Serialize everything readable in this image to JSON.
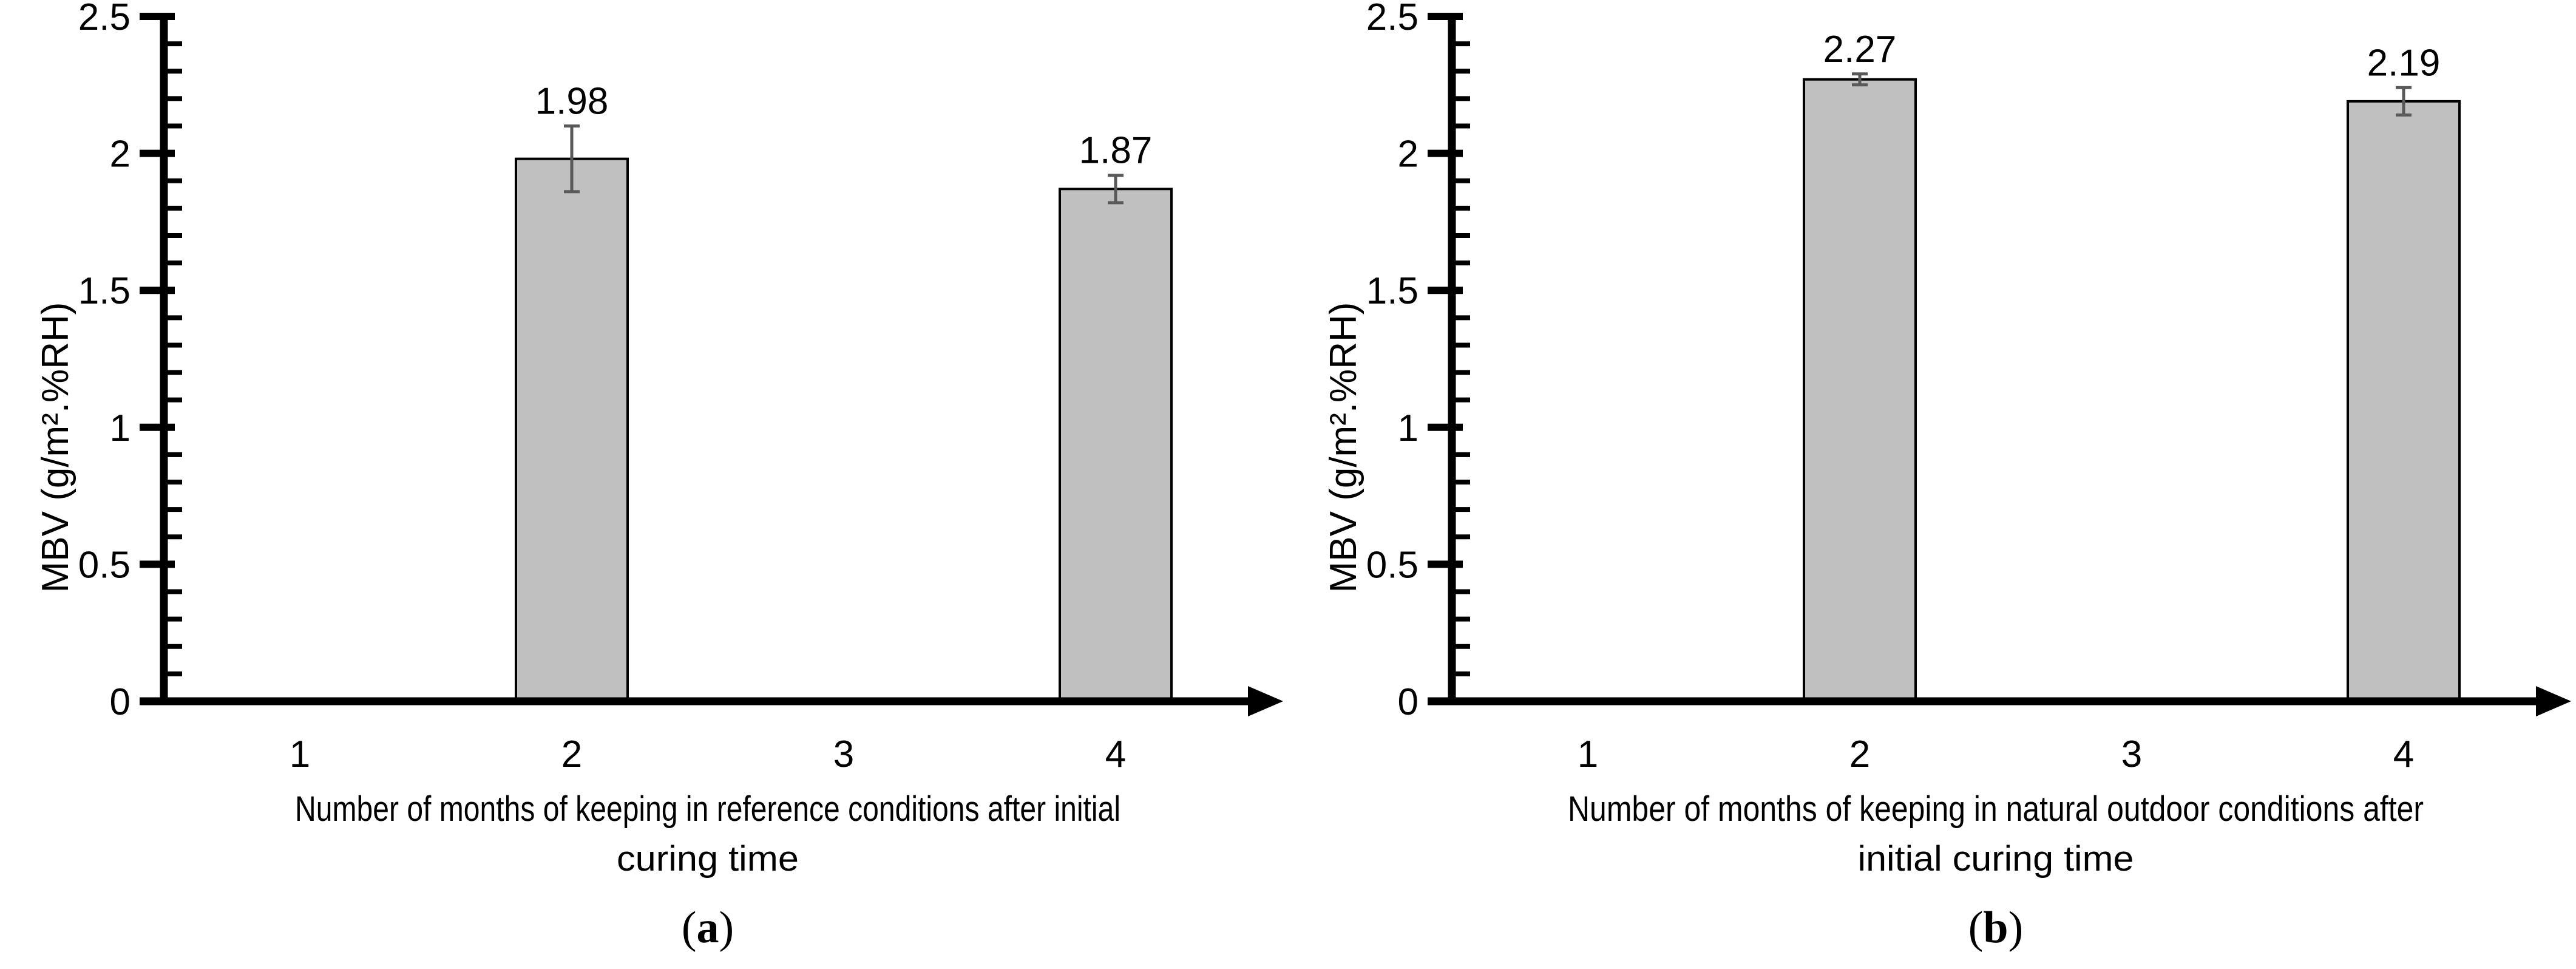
{
  "figure": {
    "background": "#ffffff",
    "colors": {
      "bar_fill": "#c0c0c0",
      "bar_border": "#000000",
      "error_bar": "#595959",
      "axis": "#000000",
      "text": "#000000"
    }
  },
  "chart_data": [
    {
      "type": "bar",
      "panel_open": "(",
      "panel_letter": "a",
      "panel_close": ")",
      "categories": [
        "1",
        "2",
        "3",
        "4"
      ],
      "values": [
        null,
        1.98,
        null,
        1.87
      ],
      "errors": [
        null,
        0.12,
        null,
        0.05
      ],
      "data_labels": [
        null,
        "1.98",
        null,
        "1.87"
      ],
      "xlabel": "Number of months of keeping in reference conditions after initial curing time",
      "xlabel_lines": [
        "Number of months of keeping in reference conditions after initial",
        "curing time"
      ],
      "ylabel": "MBV (g/m².%RH)",
      "ylim": [
        0,
        2.5
      ],
      "ymajor_ticks": [
        0,
        0.5,
        1,
        1.5,
        2,
        2.5
      ],
      "ytick_labels": [
        "0",
        "0.5",
        "1",
        "1.5",
        "2",
        "2.5"
      ],
      "yminor_step": 0.1,
      "grid": false,
      "legend": "none",
      "x_axis_arrow": true
    },
    {
      "type": "bar",
      "panel_open": "(",
      "panel_letter": "b",
      "panel_close": ")",
      "categories": [
        "1",
        "2",
        "3",
        "4"
      ],
      "values": [
        null,
        2.27,
        null,
        2.19
      ],
      "errors": [
        null,
        0.02,
        null,
        0.05
      ],
      "data_labels": [
        null,
        "2.27",
        null,
        "2.19"
      ],
      "xlabel": "Number of months of keeping in natural outdoor conditions after initial curing time",
      "xlabel_lines": [
        "Number of months of keeping in natural outdoor conditions after",
        "initial curing time"
      ],
      "ylabel": "MBV (g/m².%RH)",
      "ylim": [
        0,
        2.5
      ],
      "ymajor_ticks": [
        0,
        0.5,
        1,
        1.5,
        2,
        2.5
      ],
      "ytick_labels": [
        "0",
        "0.5",
        "1",
        "1.5",
        "2",
        "2.5"
      ],
      "yminor_step": 0.1,
      "grid": false,
      "legend": "none",
      "x_axis_arrow": true
    }
  ]
}
